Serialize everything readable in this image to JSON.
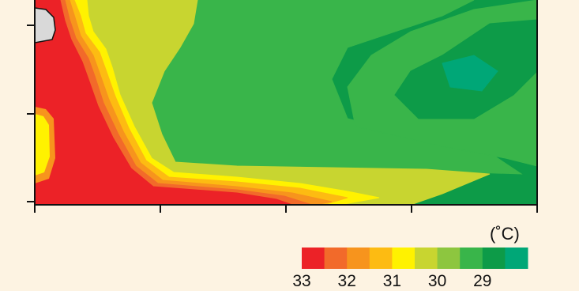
{
  "chart_data": {
    "type": "heatmap",
    "title": "",
    "xlabel": "",
    "ylabel": "",
    "unit": "(˚C)",
    "color_scale": {
      "colors": [
        "#ec2227",
        "#f26a2a",
        "#f7941d",
        "#fdbb12",
        "#fff200",
        "#c8d530",
        "#8dc63f",
        "#39b54a",
        "#0d9b48",
        "#00a777"
      ],
      "labels": [
        "33",
        "32",
        "31",
        "30",
        "29"
      ]
    },
    "missing_color": "#d9d9d9",
    "x_ticks_count": 5,
    "y_ticks_count": 3,
    "regions": [
      {
        "level": 8,
        "color": "#0d9b48",
        "desc": "base"
      },
      {
        "level": 7,
        "color": "#39b54a",
        "desc": "upper-middle band"
      },
      {
        "level": 7,
        "color": "#39b54a",
        "desc": "right band"
      },
      {
        "level": 8,
        "color": "#0d9b48",
        "desc": "right core"
      },
      {
        "level": 9,
        "color": "#00a777",
        "desc": "right spots"
      },
      {
        "level": 5,
        "color": "#c8d530",
        "desc": "warm fringe"
      },
      {
        "level": 4,
        "color": "#fff200",
        "desc": "31 contour"
      },
      {
        "level": 3,
        "color": "#fdbb12",
        "desc": "31.5 contour"
      },
      {
        "level": 2,
        "color": "#f7941d",
        "desc": "32 contour"
      },
      {
        "level": 1,
        "color": "#f26a2a",
        "desc": "32.5 contour"
      },
      {
        "level": 0,
        "color": "#ec2227",
        "desc": "33 core"
      }
    ]
  }
}
